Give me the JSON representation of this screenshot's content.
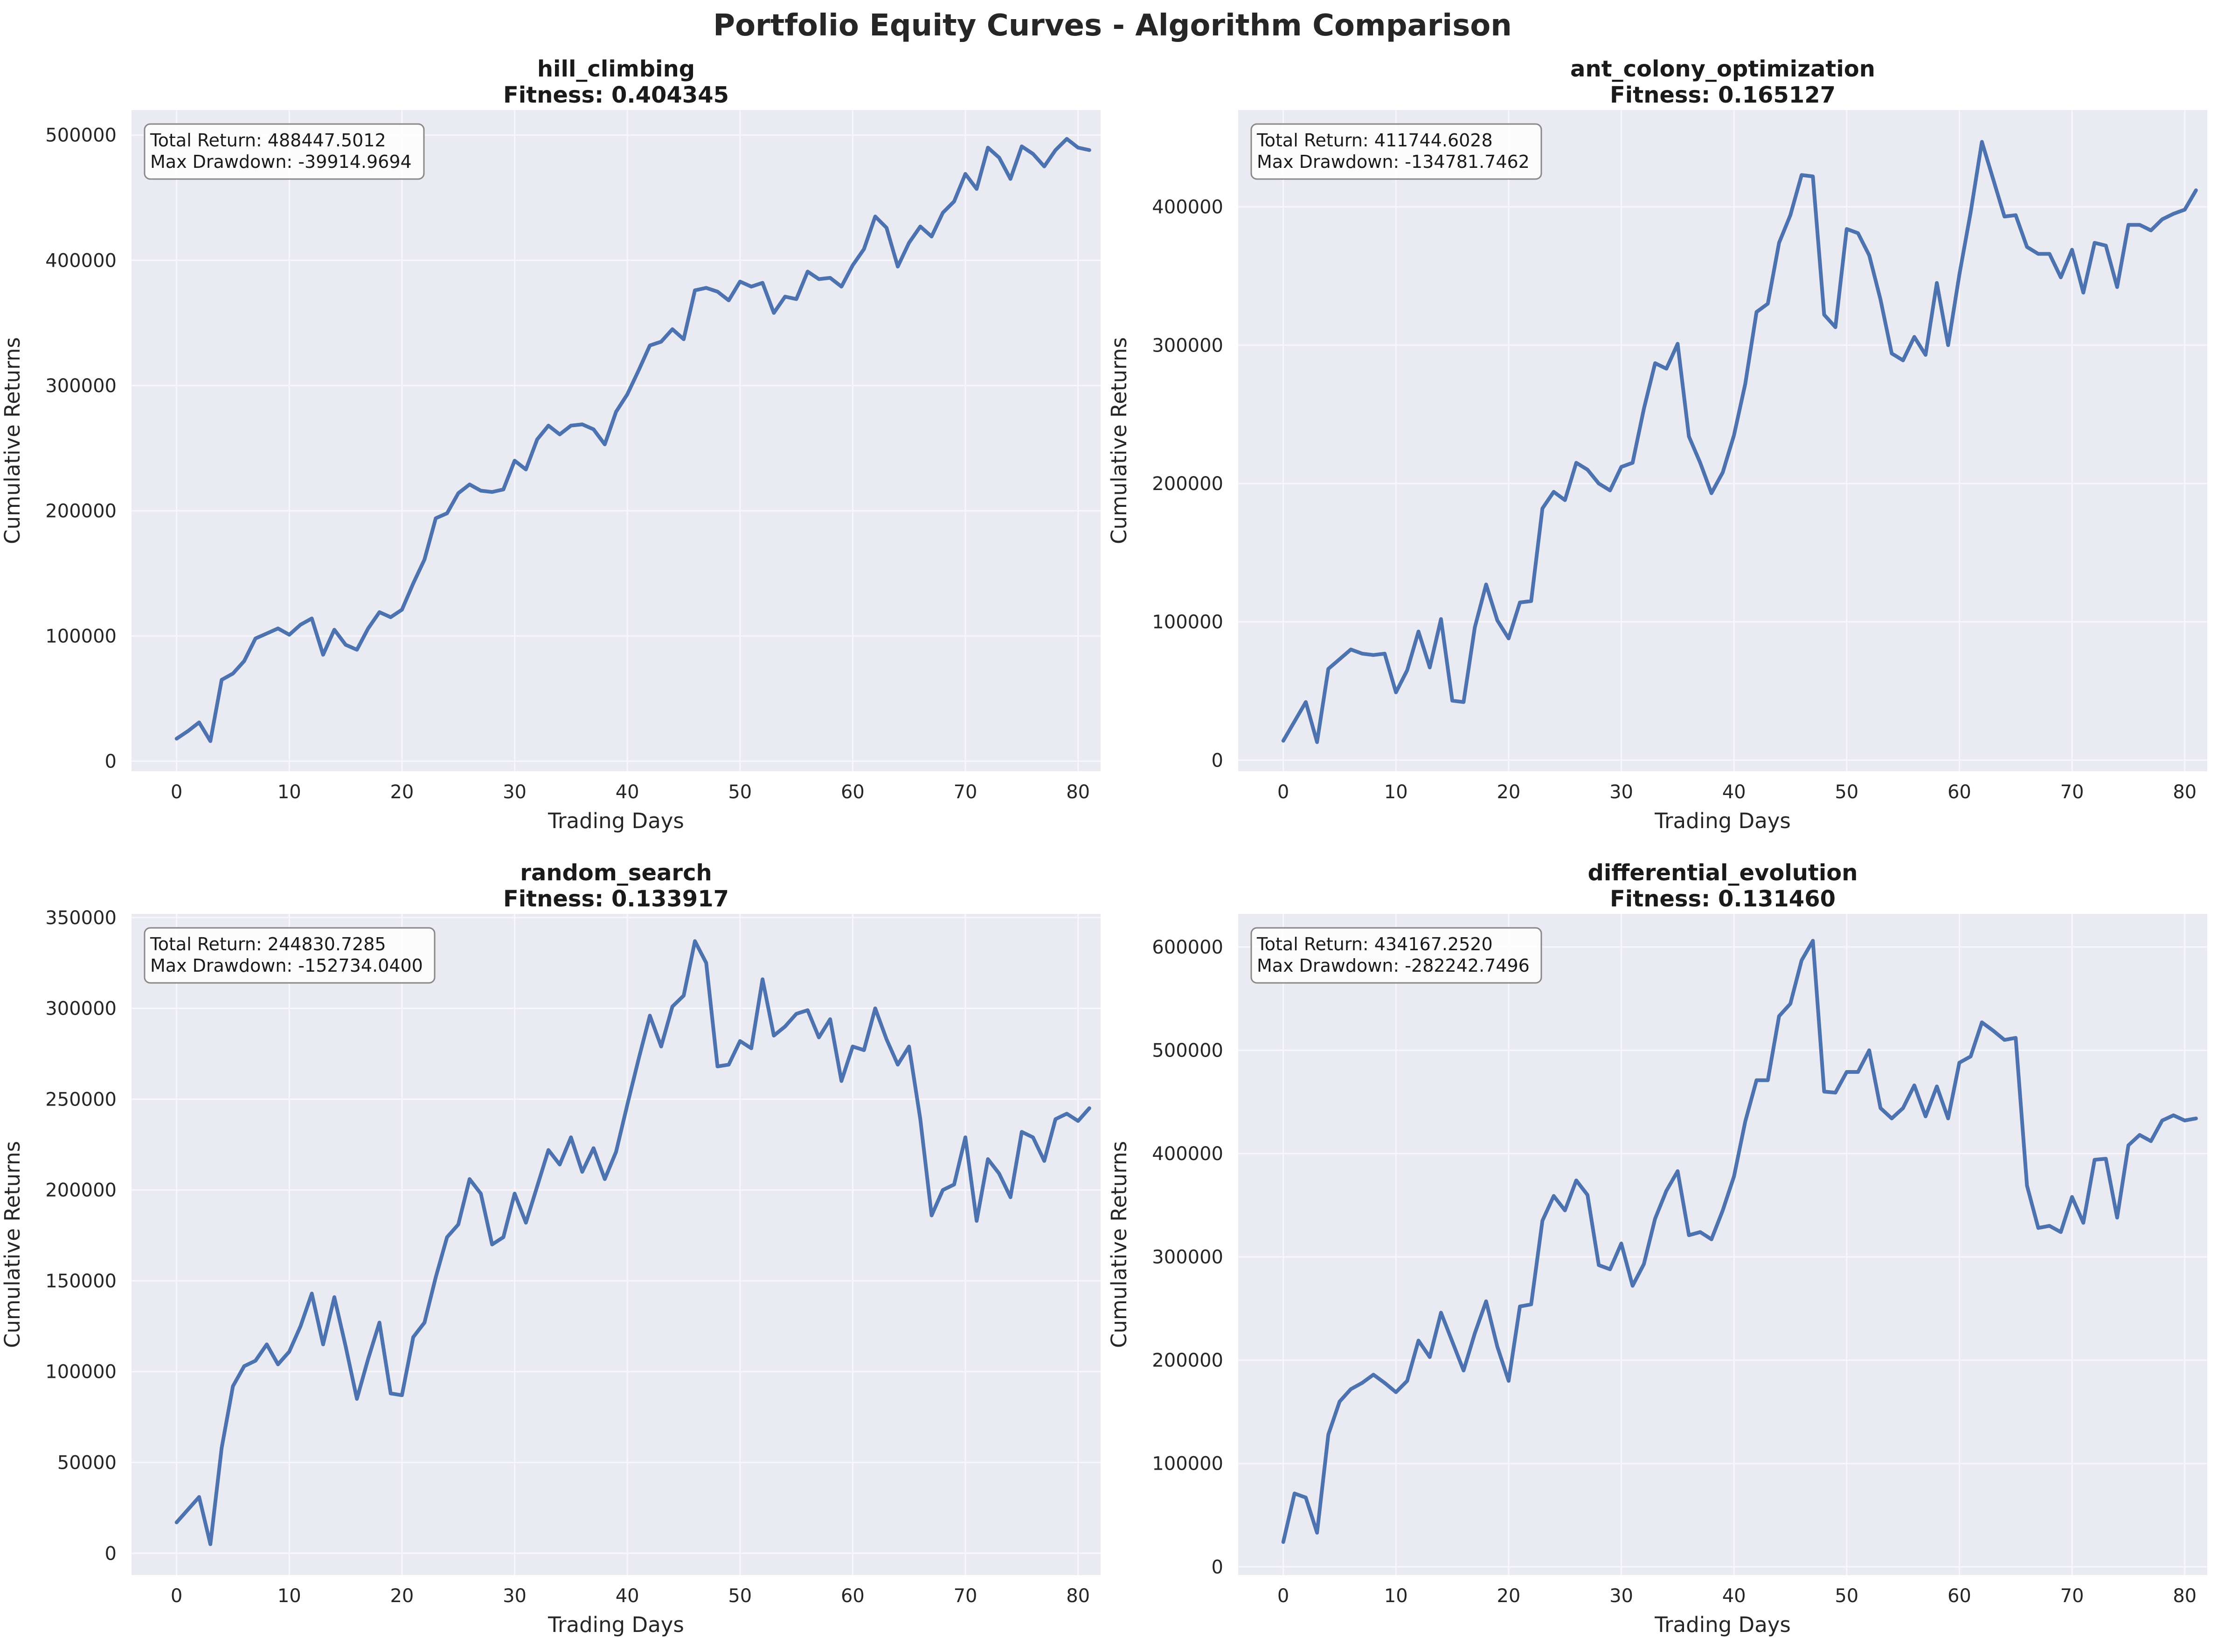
{
  "figure": {
    "title": "Portfolio Equity Curves - Algorithm Comparison"
  },
  "colors": {
    "line": "#4c72b0",
    "plot_bg": "#eaeaf2",
    "grid": "#f7f7fa"
  },
  "chart_data": [
    {
      "type": "line",
      "title": "hill_climbing",
      "subtitle": "Fitness: 0.404345",
      "xlabel": "Trading Days",
      "ylabel": "Cumulative Returns",
      "annotation": [
        "Total Return: 488447.5012",
        "Max Drawdown: -39914.9694"
      ],
      "xlim": [
        -4,
        82
      ],
      "ylim": [
        -8000,
        520000
      ],
      "xticks": [
        0,
        10,
        20,
        30,
        40,
        50,
        60,
        70,
        80
      ],
      "yticks": [
        0,
        100000,
        200000,
        300000,
        400000,
        500000
      ],
      "grid": true,
      "legend": "none",
      "series": [
        {
          "values": [
            18000,
            24000,
            31000,
            16000,
            65000,
            70000,
            80000,
            98000,
            102000,
            106000,
            101000,
            109000,
            114000,
            85000,
            105000,
            93000,
            89000,
            106000,
            119000,
            115000,
            121000,
            142000,
            161000,
            194000,
            198000,
            214000,
            221000,
            216000,
            215000,
            217000,
            240000,
            233000,
            257000,
            268000,
            261000,
            268000,
            269000,
            265000,
            253000,
            279000,
            293000,
            312000,
            332000,
            335000,
            345000,
            337000,
            376000,
            378000,
            375000,
            368000,
            383000,
            379000,
            382000,
            358000,
            371000,
            369000,
            391000,
            385000,
            386000,
            379000,
            396000,
            409000,
            435000,
            426000,
            395000,
            414000,
            427000,
            419000,
            438000,
            447000,
            469000,
            457000,
            490000,
            482000,
            465000,
            491000,
            485000,
            475000,
            488000,
            497000,
            490000,
            488000
          ]
        }
      ]
    },
    {
      "type": "line",
      "title": "ant_colony_optimization",
      "subtitle": "Fitness: 0.165127",
      "xlabel": "Trading Days",
      "ylabel": "Cumulative Returns",
      "annotation": [
        "Total Return: 411744.6028",
        "Max Drawdown: -134781.7462"
      ],
      "xlim": [
        -4,
        82
      ],
      "ylim": [
        -8000,
        470000
      ],
      "xticks": [
        0,
        10,
        20,
        30,
        40,
        50,
        60,
        70,
        80
      ],
      "yticks": [
        0,
        100000,
        200000,
        300000,
        400000
      ],
      "grid": true,
      "legend": "none",
      "series": [
        {
          "values": [
            14000,
            28000,
            42000,
            13000,
            66000,
            73000,
            80000,
            77000,
            76000,
            77000,
            49000,
            65000,
            93000,
            67000,
            102000,
            43000,
            42000,
            96000,
            127000,
            101000,
            88000,
            114000,
            115000,
            182000,
            194000,
            188000,
            215000,
            210000,
            200000,
            195000,
            212000,
            215000,
            254000,
            287000,
            283000,
            301000,
            234000,
            215000,
            193000,
            208000,
            235000,
            272000,
            324000,
            330000,
            374000,
            394000,
            423000,
            422000,
            322000,
            313000,
            384000,
            381000,
            365000,
            333000,
            294000,
            289000,
            306000,
            293000,
            345000,
            300000,
            351000,
            396000,
            447000,
            420000,
            393000,
            394000,
            371000,
            366000,
            366000,
            349000,
            369000,
            338000,
            374000,
            372000,
            342000,
            387000,
            387000,
            383000,
            391000,
            395000,
            398000,
            412000
          ]
        }
      ]
    },
    {
      "type": "line",
      "title": "random_search",
      "subtitle": "Fitness: 0.133917",
      "xlabel": "Trading Days",
      "ylabel": "Cumulative Returns",
      "annotation": [
        "Total Return: 244830.7285",
        "Max Drawdown: -152734.0400"
      ],
      "xlim": [
        -4,
        82
      ],
      "ylim": [
        -12000,
        352000
      ],
      "xticks": [
        0,
        10,
        20,
        30,
        40,
        50,
        60,
        70,
        80
      ],
      "yticks": [
        0,
        50000,
        100000,
        150000,
        200000,
        250000,
        300000,
        350000
      ],
      "grid": true,
      "legend": "none",
      "series": [
        {
          "values": [
            17000,
            24000,
            31000,
            5000,
            58000,
            92000,
            103000,
            106000,
            115000,
            104000,
            111000,
            125000,
            143000,
            115000,
            141000,
            114000,
            85000,
            107000,
            127000,
            88000,
            87000,
            119000,
            127000,
            152000,
            174000,
            181000,
            206000,
            198000,
            170000,
            174000,
            198000,
            182000,
            202000,
            222000,
            214000,
            229000,
            210000,
            223000,
            206000,
            221000,
            247000,
            272000,
            296000,
            279000,
            301000,
            307000,
            337000,
            325000,
            268000,
            269000,
            282000,
            278000,
            316000,
            285000,
            290000,
            297000,
            299000,
            284000,
            294000,
            260000,
            279000,
            277000,
            300000,
            283000,
            269000,
            279000,
            239000,
            186000,
            200000,
            203000,
            229000,
            183000,
            217000,
            209000,
            196000,
            232000,
            229000,
            216000,
            239000,
            242000,
            238000,
            245000
          ]
        }
      ]
    },
    {
      "type": "line",
      "title": "differential_evolution",
      "subtitle": "Fitness: 0.131460",
      "xlabel": "Trading Days",
      "ylabel": "Cumulative Returns",
      "annotation": [
        "Total Return: 434167.2520",
        "Max Drawdown: -282242.7496"
      ],
      "xlim": [
        -4,
        82
      ],
      "ylim": [
        -8000,
        632000
      ],
      "xticks": [
        0,
        10,
        20,
        30,
        40,
        50,
        60,
        70,
        80
      ],
      "yticks": [
        0,
        100000,
        200000,
        300000,
        400000,
        500000,
        600000
      ],
      "grid": true,
      "legend": "none",
      "series": [
        {
          "values": [
            24000,
            71000,
            67000,
            33000,
            128000,
            160000,
            172000,
            178000,
            186000,
            178000,
            169000,
            180000,
            219000,
            203000,
            246000,
            218000,
            190000,
            226000,
            257000,
            213000,
            180000,
            252000,
            254000,
            335000,
            359000,
            345000,
            374000,
            360000,
            292000,
            288000,
            313000,
            272000,
            293000,
            337000,
            364000,
            383000,
            321000,
            324000,
            317000,
            345000,
            378000,
            431000,
            471000,
            471000,
            533000,
            545000,
            587000,
            606000,
            460000,
            459000,
            479000,
            479000,
            500000,
            444000,
            434000,
            444000,
            466000,
            436000,
            465000,
            434000,
            488000,
            494000,
            527000,
            519000,
            510000,
            512000,
            369000,
            328000,
            330000,
            324000,
            358000,
            333000,
            394000,
            395000,
            338000,
            408000,
            418000,
            412000,
            432000,
            437000,
            432000,
            434000
          ]
        }
      ]
    }
  ]
}
